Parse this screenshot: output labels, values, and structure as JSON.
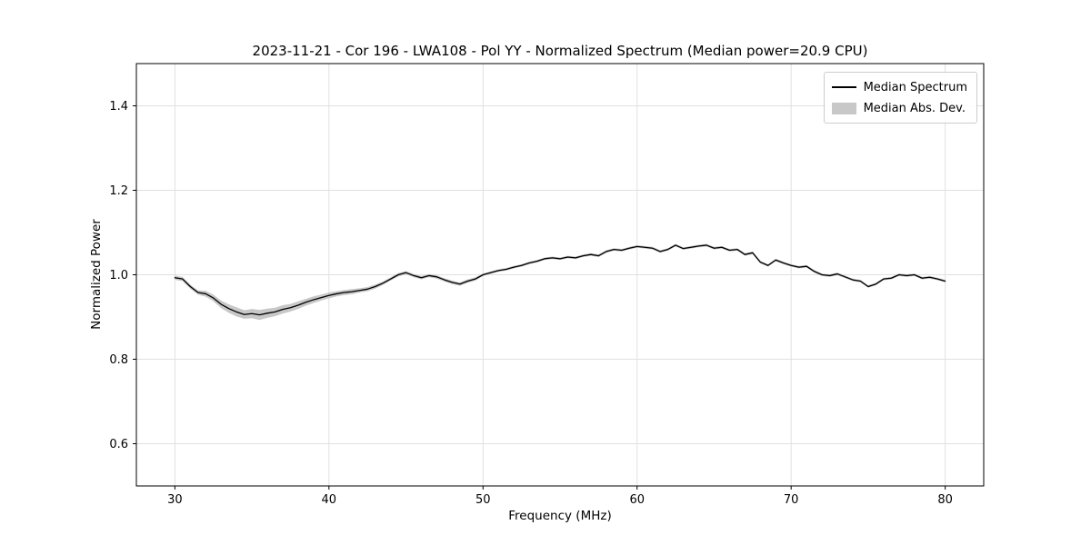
{
  "chart_data": {
    "type": "line",
    "title": "2023-11-21 - Cor 196 - LWA108 - Pol YY - Normalized Spectrum (Median power=20.9 CPU)",
    "xlabel": "Frequency (MHz)",
    "ylabel": "Normalized Power",
    "xlim": [
      27.5,
      82.5
    ],
    "ylim": [
      0.5,
      1.5
    ],
    "xticks": [
      30,
      40,
      50,
      60,
      70,
      80
    ],
    "yticks": [
      0.6,
      0.8,
      1.0,
      1.2,
      1.4
    ],
    "grid": true,
    "legend_position": "upper right",
    "colors": {
      "line": "#000000",
      "band": "#c8c8c8",
      "grid": "#e0e0e0",
      "spine": "#000000"
    },
    "legend": {
      "entries": [
        {
          "name": "Median Spectrum",
          "style": "line",
          "color": "#000000"
        },
        {
          "name": "Median Abs. Dev.",
          "style": "fill",
          "color": "#c8c8c8"
        }
      ]
    },
    "x": [
      30,
      30.5,
      31,
      31.5,
      32,
      32.5,
      33,
      33.5,
      34,
      34.5,
      35,
      35.5,
      36,
      36.5,
      37,
      37.5,
      38,
      38.5,
      39,
      39.5,
      40,
      40.5,
      41,
      41.5,
      42,
      42.5,
      43,
      43.5,
      44,
      44.5,
      45,
      45.5,
      46,
      46.5,
      47,
      47.5,
      48,
      48.5,
      49,
      49.5,
      50,
      50.5,
      51,
      51.5,
      52,
      52.5,
      53,
      53.5,
      54,
      54.5,
      55,
      55.5,
      56,
      56.5,
      57,
      57.5,
      58,
      58.5,
      59,
      59.5,
      60,
      60.5,
      61,
      61.5,
      62,
      62.5,
      63,
      63.5,
      64,
      64.5,
      65,
      65.5,
      66,
      66.5,
      67,
      67.5,
      68,
      68.5,
      69,
      69.5,
      70,
      70.5,
      71,
      71.5,
      72,
      72.5,
      73,
      73.5,
      74,
      74.5,
      75,
      75.5,
      76,
      76.5,
      77,
      77.5,
      78,
      78.5,
      79,
      79.5,
      80
    ],
    "series": [
      {
        "name": "Median Spectrum",
        "values": [
          0.993,
          0.99,
          0.972,
          0.958,
          0.955,
          0.945,
          0.93,
          0.92,
          0.912,
          0.906,
          0.908,
          0.905,
          0.909,
          0.912,
          0.918,
          0.922,
          0.928,
          0.935,
          0.941,
          0.946,
          0.951,
          0.955,
          0.958,
          0.96,
          0.963,
          0.966,
          0.972,
          0.98,
          0.99,
          1.0,
          1.005,
          0.998,
          0.993,
          0.998,
          0.995,
          0.988,
          0.982,
          0.978,
          0.985,
          0.99,
          1.0,
          1.005,
          1.01,
          1.013,
          1.018,
          1.022,
          1.028,
          1.032,
          1.038,
          1.04,
          1.038,
          1.042,
          1.04,
          1.045,
          1.048,
          1.045,
          1.055,
          1.06,
          1.058,
          1.063,
          1.067,
          1.065,
          1.063,
          1.055,
          1.06,
          1.07,
          1.062,
          1.065,
          1.068,
          1.07,
          1.063,
          1.065,
          1.058,
          1.06,
          1.048,
          1.052,
          1.03,
          1.022,
          1.035,
          1.028,
          1.022,
          1.018,
          1.02,
          1.008,
          1.0,
          0.998,
          1.002,
          0.995,
          0.988,
          0.985,
          0.972,
          0.978,
          0.99,
          0.992,
          1.0,
          0.998,
          1.0,
          0.992,
          0.994,
          0.99,
          0.985
        ]
      },
      {
        "name": "Median Abs. Dev.",
        "band_halfwidth": [
          0.005,
          0.005,
          0.005,
          0.005,
          0.007,
          0.008,
          0.009,
          0.01,
          0.011,
          0.01,
          0.011,
          0.012,
          0.011,
          0.01,
          0.01,
          0.009,
          0.009,
          0.008,
          0.008,
          0.007,
          0.007,
          0.006,
          0.006,
          0.006,
          0.005,
          0.005,
          0.005,
          0.004,
          0.004,
          0.004,
          0.004,
          0.004,
          0.004,
          0.004,
          0.004,
          0.004,
          0.004,
          0.004,
          0.004,
          0.004,
          0.003,
          0.003,
          0.003,
          0.003,
          0.003,
          0.003,
          0.003,
          0.003,
          0.003,
          0.003,
          0.003,
          0.003,
          0.003,
          0.003,
          0.003,
          0.003,
          0.003,
          0.003,
          0.003,
          0.003,
          0.003,
          0.003,
          0.003,
          0.003,
          0.003,
          0.003,
          0.003,
          0.003,
          0.003,
          0.003,
          0.003,
          0.003,
          0.003,
          0.003,
          0.003,
          0.003,
          0.003,
          0.003,
          0.003,
          0.003,
          0.003,
          0.003,
          0.003,
          0.003,
          0.003,
          0.003,
          0.003,
          0.003,
          0.003,
          0.003,
          0.003,
          0.003,
          0.003,
          0.003,
          0.003,
          0.003,
          0.003,
          0.003,
          0.003,
          0.003,
          0.003
        ]
      }
    ]
  }
}
